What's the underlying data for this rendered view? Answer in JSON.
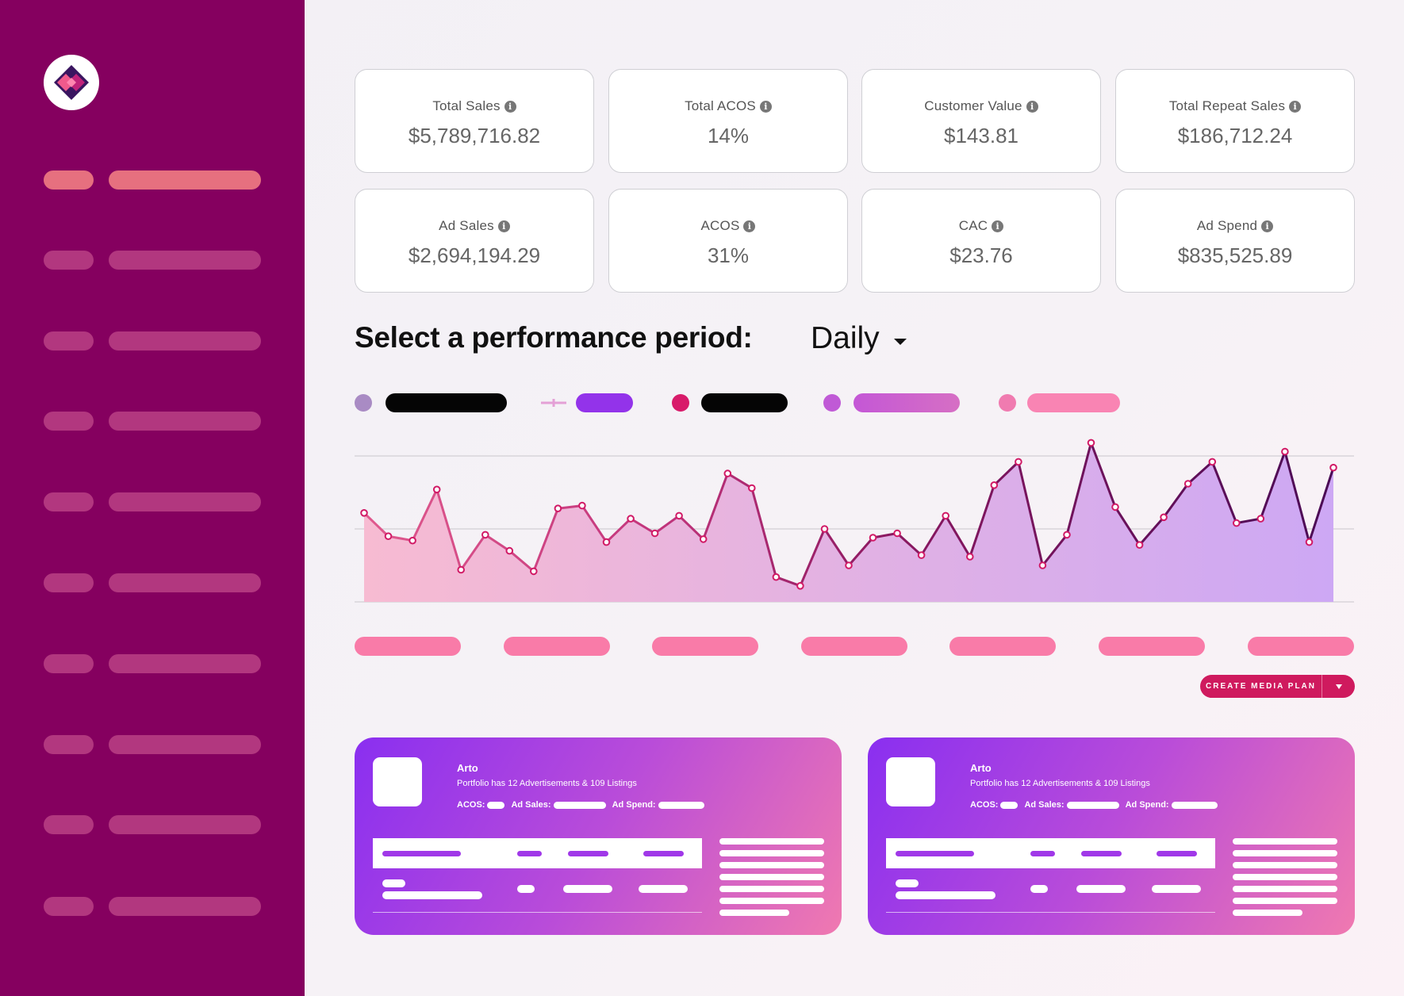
{
  "app": {
    "logo_icon": "diamond-logo-icon"
  },
  "sidebar": {
    "items": [
      {
        "active": true
      },
      {
        "active": false
      },
      {
        "active": false
      },
      {
        "active": false
      },
      {
        "active": false
      },
      {
        "active": false
      },
      {
        "active": false
      },
      {
        "active": false
      },
      {
        "active": false
      },
      {
        "active": false
      }
    ]
  },
  "kpis": [
    {
      "label": "Total Sales",
      "value": "$5,789,716.82"
    },
    {
      "label": "Total ACOS",
      "value": "14%"
    },
    {
      "label": "Customer Value",
      "value": "$143.81"
    },
    {
      "label": "Total Repeat Sales",
      "value": "$186,712.24"
    },
    {
      "label": "Ad Sales",
      "value": "$2,694,194.29"
    },
    {
      "label": "ACOS",
      "value": "31%"
    },
    {
      "label": "CAC",
      "value": "$23.76"
    },
    {
      "label": "Ad Spend",
      "value": "$835,525.89"
    }
  ],
  "period": {
    "title": "Select a performance period:",
    "selected": "Daily"
  },
  "legend_colors": [
    "#a98bc4",
    "#e4a0d6",
    "#d81b6a",
    "#c05ad6",
    "#f07bb0"
  ],
  "chart_data": {
    "type": "area",
    "ylim": [
      0,
      100
    ],
    "grid": true,
    "series": [
      {
        "values": [
          61,
          45,
          42,
          77,
          22,
          46,
          35,
          21,
          64,
          66,
          41,
          57,
          47,
          59,
          43,
          88,
          78,
          17,
          11,
          50,
          25,
          44,
          47,
          32,
          59,
          31,
          80,
          96,
          25,
          46,
          109,
          65,
          39,
          58,
          81,
          96,
          54,
          57,
          103,
          41,
          92
        ]
      }
    ]
  },
  "actions": {
    "create_media_plan": "CREATE MEDIA PLAN"
  },
  "portfolios": [
    {
      "name": "Arto",
      "desc": "Portfolio has 12 Advertisements & 109 Listings",
      "acos_label": "ACOS:",
      "ad_sales_label": "Ad Sales:",
      "ad_spend_label": "Ad Spend:"
    },
    {
      "name": "Arto",
      "desc": "Portfolio has 12 Advertisements & 109 Listings",
      "acos_label": "ACOS:",
      "ad_sales_label": "Ad Sales:",
      "ad_spend_label": "Ad Spend:"
    }
  ]
}
